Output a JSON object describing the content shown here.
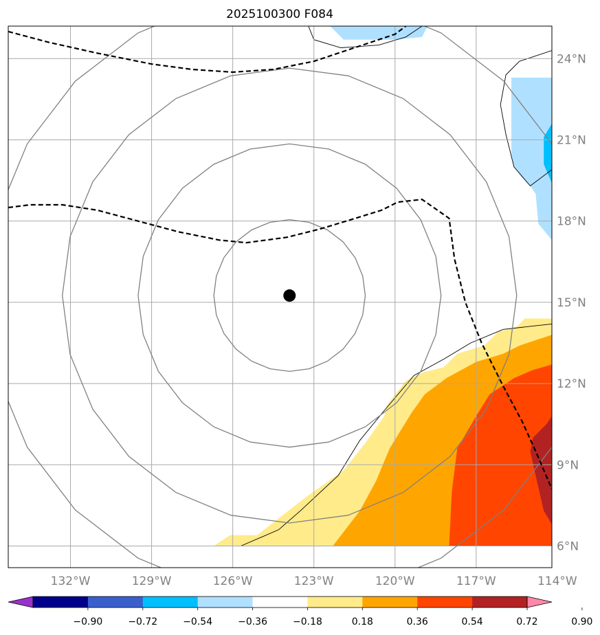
{
  "chart_data": {
    "type": "contour-map",
    "title": "2025100300 F084",
    "lon_range": [
      -134.3,
      -114.2
    ],
    "lat_range": [
      5.2,
      25.2
    ],
    "longitude_ticks": [
      {
        "value": -132,
        "label": "132°W"
      },
      {
        "value": -129,
        "label": "129°W"
      },
      {
        "value": -126,
        "label": "126°W"
      },
      {
        "value": -123,
        "label": "123°W"
      },
      {
        "value": -120,
        "label": "120°W"
      },
      {
        "value": -117,
        "label": "117°W"
      },
      {
        "value": -114,
        "label": "114°W"
      }
    ],
    "latitude_ticks": [
      {
        "value": 6,
        "label": "6°N"
      },
      {
        "value": 9,
        "label": "9°N"
      },
      {
        "value": 12,
        "label": "12°N"
      },
      {
        "value": 15,
        "label": "15°N"
      },
      {
        "value": 18,
        "label": "18°N"
      },
      {
        "value": 21,
        "label": "21°N"
      },
      {
        "value": 24,
        "label": "24°N"
      }
    ],
    "grid": true,
    "storm_center": {
      "lon": -123.9,
      "lat": 15.25
    },
    "range_rings_deg": [
      2.8,
      5.6,
      8.4,
      11.2
    ],
    "colorbar": {
      "extend": "both",
      "tick_labels": [
        "−0.90",
        "−0.72",
        "−0.54",
        "−0.36",
        "−0.18",
        "0.18",
        "0.36",
        "0.54",
        "0.72",
        "0.90"
      ],
      "levels": [
        -0.9,
        -0.72,
        -0.54,
        -0.36,
        -0.18,
        0.18,
        0.36,
        0.54,
        0.72,
        0.9
      ],
      "colors": [
        "#9932cc",
        "#00008b",
        "#3a5fcd",
        "#00bfff",
        "#b0e0ff",
        "#ffffff",
        "#ffeb8a",
        "#ffa500",
        "#ff4500",
        "#b22222",
        "#ff88aa"
      ]
    },
    "fill_regions": [
      {
        "level": "0.18–0.36",
        "color": "#ffeb8a",
        "coords": [
          [
            -126.7,
            6
          ],
          [
            -126.1,
            6.4
          ],
          [
            -125.1,
            6.4
          ],
          [
            -123.3,
            7.8
          ],
          [
            -121.9,
            8.8
          ],
          [
            -121.1,
            9.8
          ],
          [
            -120.4,
            10.8
          ],
          [
            -120.3,
            11.2
          ],
          [
            -119.6,
            12.1
          ],
          [
            -119.0,
            12.4
          ],
          [
            -118.2,
            12.6
          ],
          [
            -117.7,
            13.1
          ],
          [
            -116.7,
            13.4
          ],
          [
            -116.2,
            13.9
          ],
          [
            -115.5,
            14.1
          ],
          [
            -115.2,
            14.4
          ],
          [
            -114.2,
            14.4
          ],
          [
            -114.2,
            6
          ]
        ]
      },
      {
        "level": "0.36–0.54",
        "color": "#ffa500",
        "coords": [
          [
            -122.3,
            6
          ],
          [
            -121.3,
            7.3
          ],
          [
            -120.7,
            8.4
          ],
          [
            -120.2,
            9.6
          ],
          [
            -119.4,
            10.9
          ],
          [
            -118.9,
            11.6
          ],
          [
            -118.1,
            12.2
          ],
          [
            -117.0,
            12.8
          ],
          [
            -116.0,
            13.1
          ],
          [
            -115.4,
            13.4
          ],
          [
            -114.8,
            13.6
          ],
          [
            -114.2,
            13.8
          ],
          [
            -114.2,
            6
          ]
        ]
      },
      {
        "level": "0.54–0.72",
        "color": "#ff4500",
        "coords": [
          [
            -118.0,
            6
          ],
          [
            -117.9,
            8.0
          ],
          [
            -117.7,
            9.6
          ],
          [
            -117.0,
            10.8
          ],
          [
            -116.5,
            11.6
          ],
          [
            -115.6,
            12.2
          ],
          [
            -114.9,
            12.5
          ],
          [
            -114.2,
            12.7
          ],
          [
            -114.2,
            6
          ]
        ]
      },
      {
        "level": "0.72–0.90",
        "color": "#b22222",
        "coords": [
          [
            -114.2,
            6.8
          ],
          [
            -114.5,
            7.3
          ],
          [
            -114.8,
            8.6
          ],
          [
            -115.0,
            9.5
          ],
          [
            -114.9,
            10.0
          ],
          [
            -114.4,
            10.5
          ],
          [
            -114.2,
            10.8
          ]
        ]
      },
      {
        "level": "−0.36–−0.18",
        "color": "#b0e0ff",
        "coords": [
          [
            -115.7,
            23.3
          ],
          [
            -114.2,
            23.3
          ],
          [
            -114.2,
            17.3
          ],
          [
            -114.7,
            17.9
          ],
          [
            -114.8,
            19.0
          ],
          [
            -115.0,
            19.3
          ],
          [
            -115.3,
            19.6
          ],
          [
            -115.6,
            20.0
          ],
          [
            -115.7,
            20.5
          ]
        ]
      },
      {
        "level": "−0.54–−0.36",
        "color": "#00bfff",
        "coords": [
          [
            -114.2,
            21.6
          ],
          [
            -114.5,
            21.1
          ],
          [
            -114.5,
            20.1
          ],
          [
            -114.2,
            19.4
          ]
        ]
      },
      {
        "level": "−0.36–−0.18",
        "color": "#b0e0ff",
        "coords": [
          [
            -122.4,
            25.2
          ],
          [
            -121.9,
            24.7
          ],
          [
            -120.0,
            24.7
          ],
          [
            -119.0,
            24.8
          ],
          [
            -118.8,
            25.2
          ]
        ]
      }
    ],
    "coastlines": [
      [
        [
          -125.7,
          6
        ],
        [
          -124.3,
          6.6
        ],
        [
          -123.5,
          7.3
        ],
        [
          -122.1,
          8.6
        ],
        [
          -121.3,
          9.9
        ],
        [
          -120.4,
          11.0
        ],
        [
          -119.3,
          12.3
        ],
        [
          -118.2,
          12.9
        ],
        [
          -117.2,
          13.5
        ],
        [
          -116.0,
          14.0
        ],
        [
          -114.2,
          14.2
        ]
      ],
      [
        [
          -114.2,
          19.9
        ],
        [
          -115.0,
          19.3
        ],
        [
          -115.6,
          20.0
        ],
        [
          -115.9,
          21.2
        ],
        [
          -116.1,
          22.3
        ],
        [
          -115.9,
          23.4
        ],
        [
          -115.4,
          23.9
        ],
        [
          -114.2,
          24.3
        ]
      ],
      [
        [
          -123.2,
          25.2
        ],
        [
          -123.0,
          24.7
        ],
        [
          -122.0,
          24.4
        ],
        [
          -120.6,
          24.5
        ],
        [
          -119.6,
          24.8
        ],
        [
          -119.0,
          25.2
        ]
      ]
    ],
    "dashed_isoline_1": [
      [
        -134.3,
        25.0
      ],
      [
        -132.8,
        24.6
      ],
      [
        -131.0,
        24.2
      ],
      [
        -129.0,
        23.8
      ],
      [
        -127.5,
        23.6
      ],
      [
        -126.0,
        23.5
      ],
      [
        -124.5,
        23.6
      ],
      [
        -123.0,
        23.9
      ],
      [
        -121.5,
        24.4
      ],
      [
        -120.0,
        24.9
      ],
      [
        -119.6,
        25.2
      ]
    ],
    "dashed_isoline_2": [
      [
        -134.3,
        18.5
      ],
      [
        -133.5,
        18.6
      ],
      [
        -132.3,
        18.6
      ],
      [
        -131.0,
        18.4
      ],
      [
        -129.5,
        18.0
      ],
      [
        -128.0,
        17.6
      ],
      [
        -126.5,
        17.3
      ],
      [
        -125.5,
        17.2
      ],
      [
        -124.0,
        17.4
      ],
      [
        -122.8,
        17.7
      ],
      [
        -121.8,
        18.0
      ],
      [
        -120.5,
        18.4
      ],
      [
        -119.9,
        18.7
      ],
      [
        -119.0,
        18.8
      ],
      [
        -118.0,
        18.1
      ],
      [
        -117.8,
        16.6
      ],
      [
        -117.4,
        15.0
      ],
      [
        -116.8,
        13.5
      ],
      [
        -116.0,
        11.9
      ],
      [
        -115.3,
        10.6
      ],
      [
        -114.8,
        9.5
      ],
      [
        -114.2,
        8.1
      ]
    ]
  }
}
